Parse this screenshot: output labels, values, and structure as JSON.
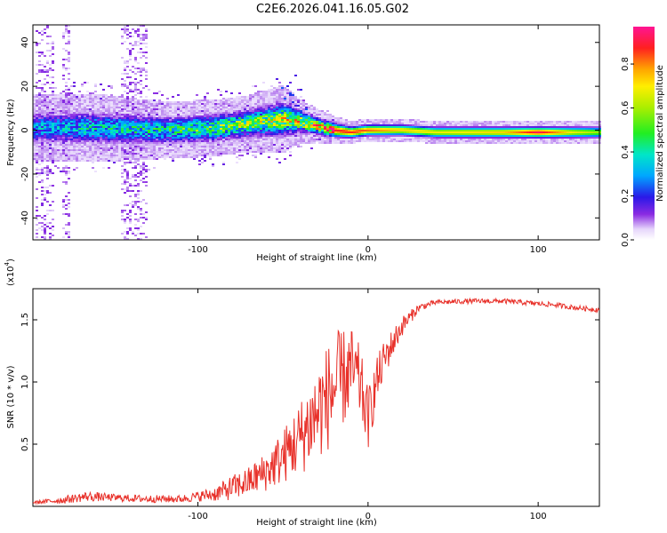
{
  "chart_data": [
    {
      "type": "heatmap",
      "title": "C2E6.2026.041.16.05.G02",
      "xlabel": "Height of straight line (km)",
      "ylabel": "Frequency (Hz)",
      "xlim": [
        -197,
        136
      ],
      "ylim": [
        -50,
        48
      ],
      "xticks": [
        -100,
        0,
        100
      ],
      "xtick_labels": [
        "-100",
        "0",
        "100"
      ],
      "yticks": [
        -40,
        -20,
        0,
        20,
        40
      ],
      "ytick_labels": [
        "-40",
        "-20",
        "0",
        "20",
        "40"
      ],
      "colorbar": {
        "label": "Normalized spectral amplitude",
        "range": [
          0,
          0.97
        ],
        "ticks": [
          0,
          0.2,
          0.4,
          0.6,
          0.8
        ],
        "tick_labels": [
          "0.0",
          "0.2",
          "0.4",
          "0.6",
          "0.8"
        ]
      },
      "ridge": {
        "x": [
          -197,
          -160,
          -120,
          -90,
          -70,
          -50,
          -40,
          -30,
          -20,
          -10,
          0,
          20,
          40,
          80,
          100,
          120,
          136
        ],
        "center_freq": [
          1,
          1,
          0,
          1,
          3,
          5,
          4,
          2,
          0,
          -1,
          0,
          0,
          -1,
          -1,
          -1,
          -1,
          -1
        ],
        "halfwidth": [
          6,
          6,
          5,
          5,
          5,
          6,
          4,
          3,
          2.5,
          2,
          2,
          2,
          2,
          2,
          2,
          2,
          2
        ],
        "peak_amplitude": [
          0.3,
          0.35,
          0.4,
          0.5,
          0.55,
          0.6,
          0.65,
          0.75,
          0.9,
          0.9,
          0.85,
          0.75,
          0.7,
          0.75,
          0.95,
          0.7,
          0.6
        ]
      },
      "vertical_noise_bands_x": [
        [
          -195,
          -185
        ],
        [
          -180,
          -175
        ],
        [
          -145,
          -130
        ]
      ]
    },
    {
      "type": "line",
      "title": "",
      "xlabel": "Height of straight line (km)",
      "ylabel": "SNR (10 * v/v)",
      "y_multiplier_label": "(x10",
      "y_multiplier_exp": "4",
      "xlim": [
        -197,
        136
      ],
      "ylim": [
        0,
        1.75
      ],
      "xticks": [
        -100,
        0,
        100
      ],
      "xtick_labels": [
        "-100",
        "0",
        "100"
      ],
      "yticks": [
        0.5,
        1.0,
        1.5
      ],
      "ytick_labels": [
        "0.5",
        "1.0",
        "1.5"
      ],
      "series": [
        {
          "name": "SNR",
          "color": "#e8312a",
          "x": [
            -197,
            -180,
            -165,
            -150,
            -130,
            -110,
            -100,
            -90,
            -80,
            -70,
            -60,
            -50,
            -40,
            -30,
            -20,
            -10,
            -5,
            0,
            5,
            10,
            20,
            30,
            40,
            60,
            80,
            100,
            110,
            120,
            136
          ],
          "values": [
            0.03,
            0.05,
            0.08,
            0.07,
            0.06,
            0.06,
            0.08,
            0.1,
            0.15,
            0.2,
            0.28,
            0.4,
            0.55,
            0.75,
            0.95,
            1.1,
            1.0,
            0.7,
            1.0,
            1.2,
            1.45,
            1.6,
            1.64,
            1.65,
            1.65,
            1.63,
            1.62,
            1.6,
            1.58
          ],
          "jitter": [
            0.01,
            0.03,
            0.04,
            0.03,
            0.03,
            0.03,
            0.04,
            0.06,
            0.1,
            0.12,
            0.16,
            0.22,
            0.3,
            0.4,
            0.45,
            0.35,
            0.3,
            0.25,
            0.2,
            0.15,
            0.08,
            0.03,
            0.02,
            0.02,
            0.02,
            0.02,
            0.02,
            0.02,
            0.02
          ]
        }
      ]
    }
  ]
}
